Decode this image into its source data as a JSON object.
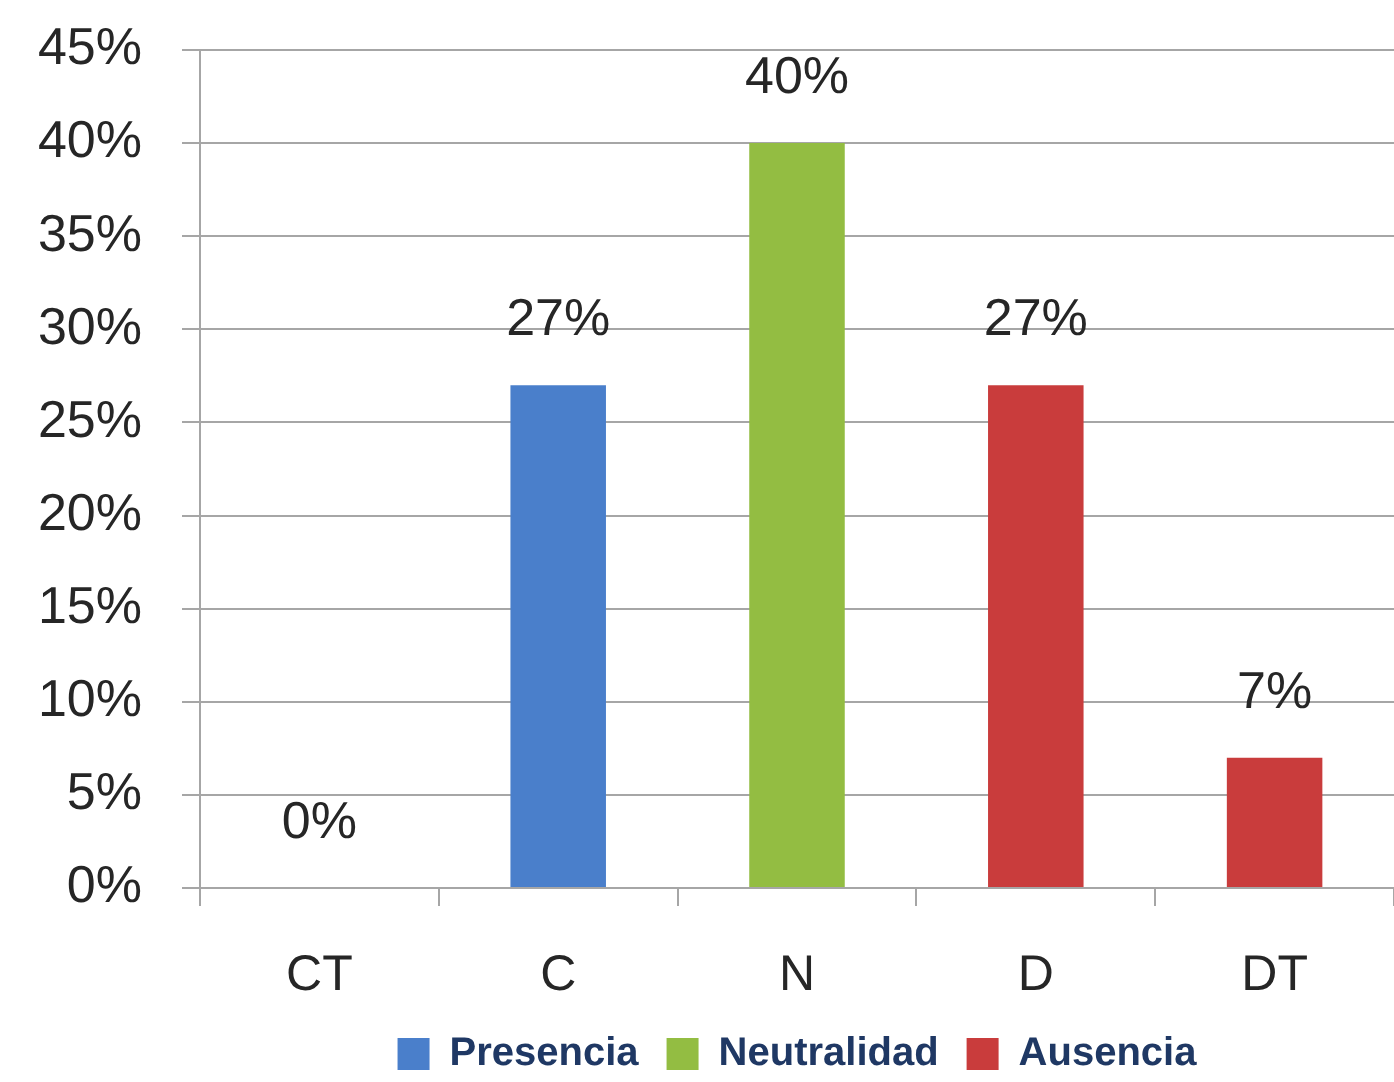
{
  "chart_data": {
    "type": "bar",
    "categories": [
      "CT",
      "C",
      "N",
      "D",
      "DT"
    ],
    "series": [
      {
        "name": "Presencia",
        "color": "#4a7fcb",
        "values": [
          0,
          27,
          null,
          null,
          null
        ],
        "value_labels": [
          "0%",
          "27%",
          null,
          null,
          null
        ]
      },
      {
        "name": "Neutralidad",
        "color": "#93bd42",
        "values": [
          null,
          null,
          40,
          null,
          null
        ],
        "value_labels": [
          null,
          null,
          "40%",
          null,
          null
        ]
      },
      {
        "name": "Ausencia",
        "color": "#c93c3c",
        "values": [
          null,
          null,
          null,
          27,
          7
        ],
        "value_labels": [
          null,
          null,
          null,
          "27%",
          "7%"
        ]
      }
    ],
    "ylim": [
      0,
      45
    ],
    "yticks": [
      {
        "value": 0,
        "label": "0%"
      },
      {
        "value": 5,
        "label": "5%"
      },
      {
        "value": 10,
        "label": "10%"
      },
      {
        "value": 15,
        "label": "15%"
      },
      {
        "value": 20,
        "label": "20%"
      },
      {
        "value": 25,
        "label": "25%"
      },
      {
        "value": 30,
        "label": "30%"
      },
      {
        "value": 35,
        "label": "35%"
      },
      {
        "value": 40,
        "label": "40%"
      },
      {
        "value": 45,
        "label": "45%"
      }
    ],
    "grid": "y",
    "legend": "bottom"
  }
}
